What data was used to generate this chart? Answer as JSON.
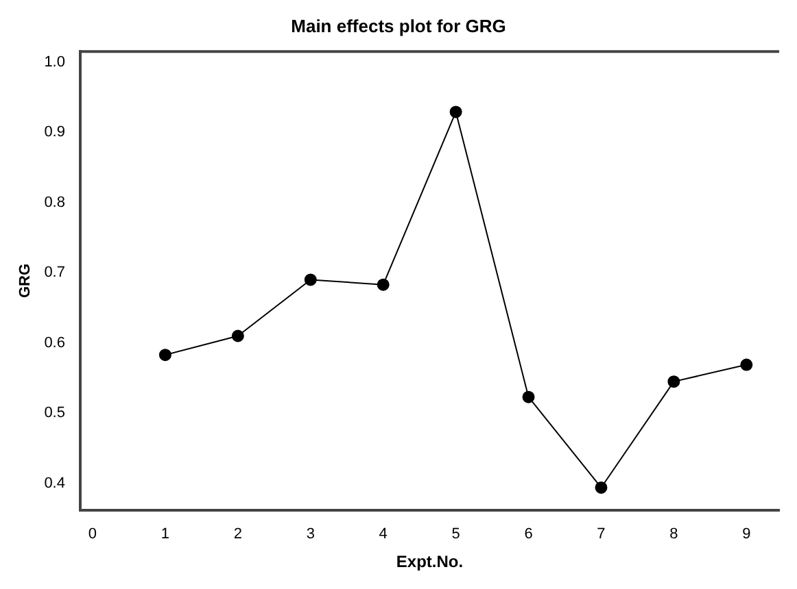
{
  "chart_data": {
    "type": "line",
    "title": "Main effects plot for GRG",
    "xlabel": "Expt.No.",
    "ylabel": "GRG",
    "x": [
      1,
      2,
      3,
      4,
      5,
      6,
      7,
      8,
      9
    ],
    "series": [
      {
        "color": "#000000",
        "values": [
          0.583,
          0.61,
          0.69,
          0.683,
          0.929,
          0.523,
          0.394,
          0.545,
          0.569
        ]
      }
    ],
    "xlim": [
      -0.17,
      9.45
    ],
    "xticks": [
      0,
      1,
      2,
      3,
      4,
      5,
      6,
      7,
      8,
      9
    ],
    "ylim": [
      0.362,
      1.015
    ],
    "yticks": [
      0.4,
      0.5,
      0.6,
      0.7,
      0.8,
      0.9,
      {
        "value": 1.0,
        "label": "1.0"
      }
    ],
    "grid": false,
    "legend": false,
    "marker": "circle",
    "line_style": "solid"
  }
}
